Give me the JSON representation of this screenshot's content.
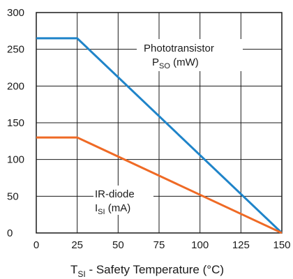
{
  "chart_data": {
    "type": "line",
    "xlabel": {
      "main": "T",
      "sub": "SI",
      "rest": " - Safety Temperature (°C)"
    },
    "ylabel": "",
    "xlim": [
      0,
      150
    ],
    "ylim": [
      0,
      300
    ],
    "xticks": [
      0,
      25,
      50,
      75,
      100,
      125,
      150
    ],
    "yticks": [
      0,
      50,
      100,
      150,
      200,
      250,
      300
    ],
    "grid": true,
    "series": [
      {
        "name": "Phototransistor",
        "color": "#1f84c9",
        "label_line1": "Phototransistor",
        "label_main": "P",
        "label_sub": "SO",
        "label_rest": " (mW)",
        "x": [
          0,
          25,
          150
        ],
        "y": [
          265,
          265,
          0
        ]
      },
      {
        "name": "IR-diode",
        "color": "#ef6a25",
        "label_line1": "IR-diode",
        "label_main": "I",
        "label_sub": "SI",
        "label_rest": " (mA)",
        "x": [
          0,
          25,
          150
        ],
        "y": [
          130,
          130,
          0
        ]
      }
    ]
  }
}
